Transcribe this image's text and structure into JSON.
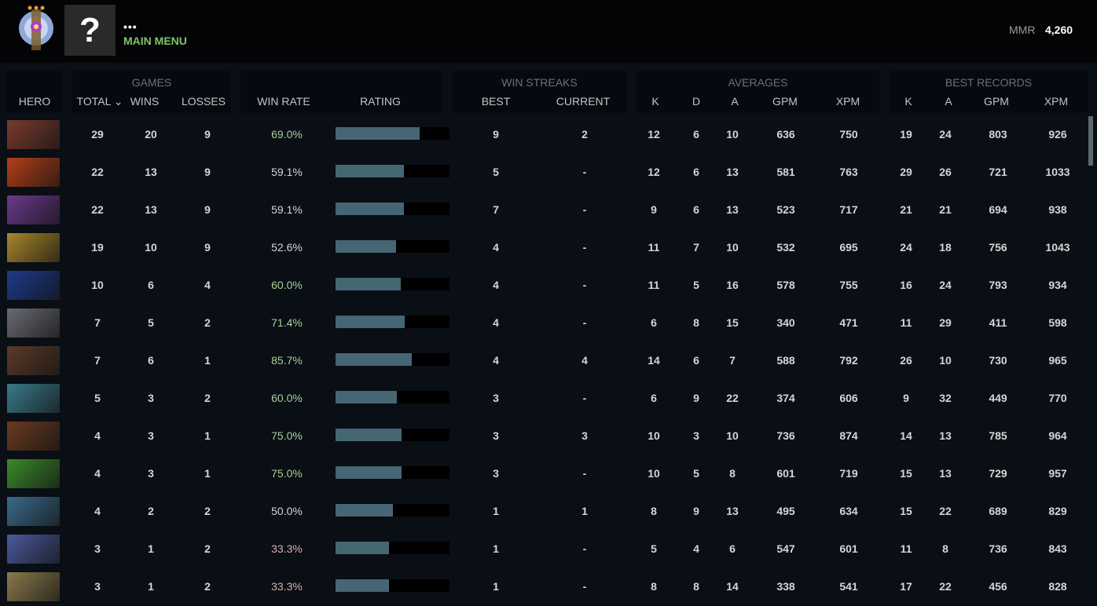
{
  "header": {
    "dots": "•••",
    "main_menu": "MAIN MENU",
    "avatar_glyph": "?",
    "mmr_label": "MMR",
    "mmr_value": "4,260"
  },
  "groups": {
    "games": "GAMES",
    "win_streaks": "WIN STREAKS",
    "averages": "AVERAGES",
    "best_records": "BEST RECORDS"
  },
  "columns": {
    "hero": "HERO",
    "total": "TOTAL ⌄",
    "wins": "WINS",
    "losses": "LOSSES",
    "win_rate": "WIN RATE",
    "rating": "RATING",
    "best": "BEST",
    "current": "CURRENT",
    "k": "K",
    "d": "D",
    "a": "A",
    "gpm": "GPM",
    "xpm": "XPM",
    "bk": "K",
    "ba": "A",
    "bgpm": "GPM",
    "bxpm": "XPM"
  },
  "colors": {
    "high": "#a6d39a",
    "mid": "#d6d6d6",
    "low": "#d8b0b0",
    "bar": "#466673"
  },
  "rows": [
    {
      "hero_color": "#7a3b2e",
      "total": "29",
      "wins": "20",
      "losses": "9",
      "win_rate": "69.0%",
      "tier": "high",
      "rating": 0.74,
      "best": "9",
      "current": "2",
      "k": "12",
      "d": "6",
      "a": "10",
      "gpm": "636",
      "xpm": "750",
      "bk": "19",
      "ba": "24",
      "bgpm": "803",
      "bxpm": "926"
    },
    {
      "hero_color": "#b3401a",
      "total": "22",
      "wins": "13",
      "losses": "9",
      "win_rate": "59.1%",
      "tier": "mid",
      "rating": 0.6,
      "best": "5",
      "current": "-",
      "k": "12",
      "d": "6",
      "a": "13",
      "gpm": "581",
      "xpm": "763",
      "bk": "29",
      "ba": "26",
      "bgpm": "721",
      "bxpm": "1033"
    },
    {
      "hero_color": "#6a3a8a",
      "total": "22",
      "wins": "13",
      "losses": "9",
      "win_rate": "59.1%",
      "tier": "mid",
      "rating": 0.6,
      "best": "7",
      "current": "-",
      "k": "9",
      "d": "6",
      "a": "13",
      "gpm": "523",
      "xpm": "717",
      "bk": "21",
      "ba": "21",
      "bgpm": "694",
      "bxpm": "938"
    },
    {
      "hero_color": "#a8862a",
      "total": "19",
      "wins": "10",
      "losses": "9",
      "win_rate": "52.6%",
      "tier": "mid",
      "rating": 0.53,
      "best": "4",
      "current": "-",
      "k": "11",
      "d": "7",
      "a": "10",
      "gpm": "532",
      "xpm": "695",
      "bk": "24",
      "ba": "18",
      "bgpm": "756",
      "bxpm": "1043"
    },
    {
      "hero_color": "#1e3a8a",
      "total": "10",
      "wins": "6",
      "losses": "4",
      "win_rate": "60.0%",
      "tier": "high",
      "rating": 0.57,
      "best": "4",
      "current": "-",
      "k": "11",
      "d": "5",
      "a": "16",
      "gpm": "578",
      "xpm": "755",
      "bk": "16",
      "ba": "24",
      "bgpm": "793",
      "bxpm": "934"
    },
    {
      "hero_color": "#6a6a72",
      "total": "7",
      "wins": "5",
      "losses": "2",
      "win_rate": "71.4%",
      "tier": "high",
      "rating": 0.61,
      "best": "4",
      "current": "-",
      "k": "6",
      "d": "8",
      "a": "15",
      "gpm": "340",
      "xpm": "471",
      "bk": "11",
      "ba": "29",
      "bgpm": "411",
      "bxpm": "598"
    },
    {
      "hero_color": "#5a3a2a",
      "total": "7",
      "wins": "6",
      "losses": "1",
      "win_rate": "85.7%",
      "tier": "high",
      "rating": 0.67,
      "best": "4",
      "current": "4",
      "k": "14",
      "d": "6",
      "a": "7",
      "gpm": "588",
      "xpm": "792",
      "bk": "26",
      "ba": "10",
      "bgpm": "730",
      "bxpm": "965"
    },
    {
      "hero_color": "#3a7a88",
      "total": "5",
      "wins": "3",
      "losses": "2",
      "win_rate": "60.0%",
      "tier": "high",
      "rating": 0.54,
      "best": "3",
      "current": "-",
      "k": "6",
      "d": "9",
      "a": "22",
      "gpm": "374",
      "xpm": "606",
      "bk": "9",
      "ba": "32",
      "bgpm": "449",
      "bxpm": "770"
    },
    {
      "hero_color": "#6a3a20",
      "total": "4",
      "wins": "3",
      "losses": "1",
      "win_rate": "75.0%",
      "tier": "high",
      "rating": 0.58,
      "best": "3",
      "current": "3",
      "k": "10",
      "d": "3",
      "a": "10",
      "gpm": "736",
      "xpm": "874",
      "bk": "14",
      "ba": "13",
      "bgpm": "785",
      "bxpm": "964"
    },
    {
      "hero_color": "#3a8a2a",
      "total": "4",
      "wins": "3",
      "losses": "1",
      "win_rate": "75.0%",
      "tier": "high",
      "rating": 0.58,
      "best": "3",
      "current": "-",
      "k": "10",
      "d": "5",
      "a": "8",
      "gpm": "601",
      "xpm": "719",
      "bk": "15",
      "ba": "13",
      "bgpm": "729",
      "bxpm": "957"
    },
    {
      "hero_color": "#3a6a8a",
      "total": "4",
      "wins": "2",
      "losses": "2",
      "win_rate": "50.0%",
      "tier": "mid",
      "rating": 0.5,
      "best": "1",
      "current": "1",
      "k": "8",
      "d": "9",
      "a": "13",
      "gpm": "495",
      "xpm": "634",
      "bk": "15",
      "ba": "22",
      "bgpm": "689",
      "bxpm": "829"
    },
    {
      "hero_color": "#4a5a9a",
      "total": "3",
      "wins": "1",
      "losses": "2",
      "win_rate": "33.3%",
      "tier": "low",
      "rating": 0.47,
      "best": "1",
      "current": "-",
      "k": "5",
      "d": "4",
      "a": "6",
      "gpm": "547",
      "xpm": "601",
      "bk": "11",
      "ba": "8",
      "bgpm": "736",
      "bxpm": "843"
    },
    {
      "hero_color": "#8a7a4a",
      "total": "3",
      "wins": "1",
      "losses": "2",
      "win_rate": "33.3%",
      "tier": "low",
      "rating": 0.47,
      "best": "1",
      "current": "-",
      "k": "8",
      "d": "8",
      "a": "14",
      "gpm": "338",
      "xpm": "541",
      "bk": "17",
      "ba": "22",
      "bgpm": "456",
      "bxpm": "828"
    }
  ]
}
